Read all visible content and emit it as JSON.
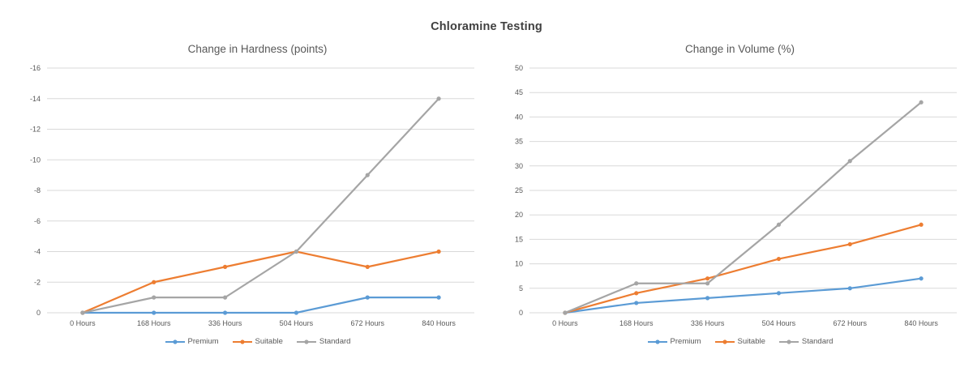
{
  "page_title": "Chloramine Testing",
  "colors": {
    "premium": "#5B9BD5",
    "suitable": "#ED7D31",
    "standard": "#A5A5A5",
    "gridline": "#D9D9D9",
    "axis_text": "#595959",
    "title_text": "#404040"
  },
  "chart_data": [
    {
      "type": "line",
      "title": "Change in Hardness (points)",
      "categories": [
        "0 Hours",
        "168 Hours",
        "336 Hours",
        "504 Hours",
        "672 Hours",
        "840 Hours"
      ],
      "series": [
        {
          "name": "Premium",
          "color": "#5B9BD5",
          "values": [
            0,
            0,
            0,
            0,
            -1,
            -1
          ]
        },
        {
          "name": "Suitable",
          "color": "#ED7D31",
          "values": [
            0,
            -2,
            -3,
            -4,
            -3,
            -4
          ]
        },
        {
          "name": "Standard",
          "color": "#A5A5A5",
          "values": [
            0,
            -1,
            -1,
            -4,
            -9,
            -14
          ]
        }
      ],
      "y_axis": {
        "min": 0,
        "max": -16,
        "step": -2,
        "note": "inverted: 0 at bottom, -16 at top"
      },
      "xlabel": "",
      "ylabel": "",
      "grid": true,
      "legend_position": "bottom",
      "legend_labels": [
        "Premium",
        "Suitable",
        "Standard"
      ]
    },
    {
      "type": "line",
      "title": "Change in Volume (%)",
      "categories": [
        "0 Hours",
        "168 Hours",
        "336 Hours",
        "504 Hours",
        "672 Hours",
        "840 Hours"
      ],
      "series": [
        {
          "name": "Premium",
          "color": "#5B9BD5",
          "values": [
            0,
            2,
            3,
            4,
            5,
            7
          ]
        },
        {
          "name": "Suitable",
          "color": "#ED7D31",
          "values": [
            0,
            4,
            7,
            11,
            14,
            18
          ]
        },
        {
          "name": "Standard",
          "color": "#A5A5A5",
          "values": [
            0,
            6,
            6,
            18,
            31,
            43
          ]
        }
      ],
      "y_axis": {
        "min": 0,
        "max": 50,
        "step": 5
      },
      "xlabel": "",
      "ylabel": "",
      "grid": true,
      "legend_position": "bottom",
      "legend_labels": [
        "Premium",
        "Suitable",
        "Standard"
      ]
    }
  ]
}
